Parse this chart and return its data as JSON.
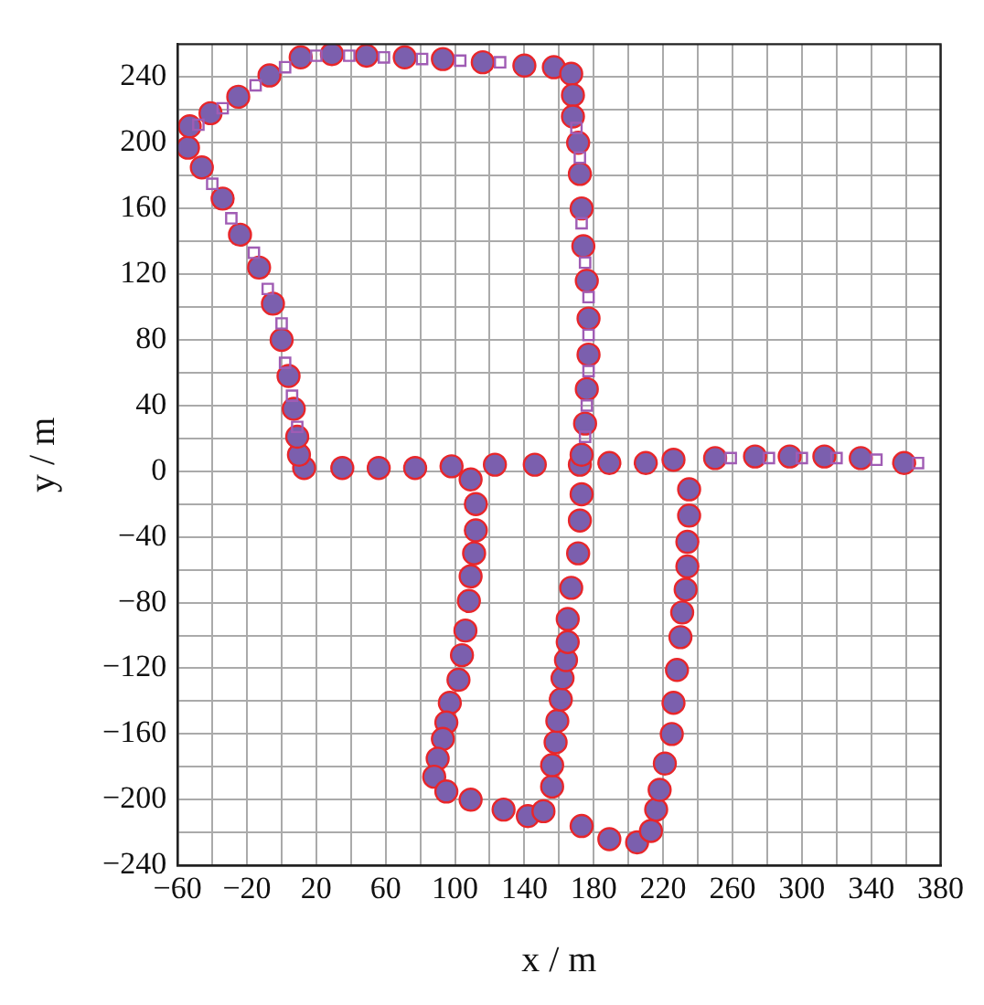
{
  "chart_data": {
    "type": "scatter",
    "xlabel": "x / m",
    "ylabel": "y / m",
    "xlim": [
      -60,
      380
    ],
    "ylim": [
      -240,
      260
    ],
    "xticks": [
      -60,
      {
        "value": -40,
        "label": null
      },
      -20,
      {
        "value": 0,
        "label": null
      },
      20,
      {
        "value": 40,
        "label": null
      },
      60,
      {
        "value": 80,
        "label": null
      },
      100,
      {
        "value": 120,
        "label": null
      },
      140,
      {
        "value": 160,
        "label": null
      },
      180,
      {
        "value": 200,
        "label": null
      },
      220,
      {
        "value": 240,
        "label": null
      },
      260,
      {
        "value": 280,
        "label": null
      },
      300,
      {
        "value": 320,
        "label": null
      },
      340,
      {
        "value": 360,
        "label": null
      },
      380
    ],
    "yticks": [
      -240,
      {
        "value": -220,
        "label": null
      },
      -200,
      {
        "value": -180,
        "label": null
      },
      -160,
      {
        "value": -140,
        "label": null
      },
      -120,
      {
        "value": -100,
        "label": null
      },
      -80,
      {
        "value": -60,
        "label": null
      },
      -40,
      {
        "value": -20,
        "label": null
      },
      0,
      {
        "value": 20,
        "label": null
      },
      40,
      {
        "value": 60,
        "label": null
      },
      80,
      {
        "value": 100,
        "label": null
      },
      120,
      {
        "value": 140,
        "label": null
      },
      160,
      {
        "value": 180,
        "label": null
      },
      200,
      {
        "value": 220,
        "label": null
      },
      240
    ],
    "grid": true,
    "legend": false,
    "series": [
      {
        "color": "#7b5fae",
        "marker": "circle",
        "x": [
          13,
          35,
          56,
          77,
          98,
          123,
          146,
          172,
          189,
          210,
          226,
          250,
          273,
          293,
          313,
          334,
          359,
          10,
          9,
          7,
          4,
          0,
          -5,
          -13,
          -24,
          -34,
          -46,
          -54,
          -53,
          -41,
          -25,
          -7,
          11,
          29,
          49,
          71,
          93,
          116,
          140,
          157,
          167,
          168,
          168,
          171,
          172,
          173,
          174,
          176,
          177,
          177,
          176,
          175,
          173,
          109,
          112,
          112,
          111,
          109,
          108,
          106,
          104,
          102,
          97,
          95,
          93,
          90,
          88,
          95,
          109,
          128,
          142,
          151,
          156,
          156,
          158,
          159,
          161,
          162,
          164,
          165,
          165,
          167,
          171,
          172,
          173,
          173,
          189,
          205,
          213,
          216,
          218,
          221,
          225,
          226,
          228,
          230,
          231,
          233,
          234,
          234,
          235,
          235
        ],
        "values": [
          2,
          2,
          2,
          2,
          3,
          4,
          4,
          4,
          5,
          5,
          7,
          8,
          9,
          9,
          9,
          8,
          5,
          10,
          21,
          38,
          58,
          80,
          102,
          124,
          144,
          166,
          185,
          197,
          210,
          218,
          228,
          241,
          252,
          254,
          253,
          252,
          251,
          249,
          247,
          246,
          242,
          229,
          216,
          200,
          181,
          160,
          137,
          116,
          93,
          71,
          50,
          29,
          10,
          -5,
          -20,
          -36,
          -50,
          -64,
          -79,
          -97,
          -112,
          -127,
          -141,
          -153,
          -163,
          -175,
          -186,
          -195,
          -200,
          -206,
          -210,
          -207,
          -192,
          -179,
          -165,
          -152,
          -139,
          -126,
          -115,
          -104,
          -90,
          -71,
          -50,
          -30,
          -14,
          -216,
          -224,
          -226,
          -219,
          -206,
          -194,
          -178,
          -160,
          -141,
          -121,
          -101,
          -86,
          -72,
          -58,
          -43,
          -27,
          -11
        ]
      },
      {
        "color": "#a05cb4",
        "marker": "square",
        "x": [
          20,
          39,
          59,
          81,
          103,
          126,
          2,
          -15,
          -34,
          -48,
          -40,
          -29,
          -16,
          -8,
          0,
          2,
          6,
          9,
          170,
          172,
          173,
          175,
          177,
          177,
          177,
          176,
          175,
          259,
          281,
          300,
          320,
          343,
          367
        ],
        "values": [
          253,
          253,
          252,
          251,
          250,
          249,
          246,
          235,
          221,
          211,
          175,
          154,
          133,
          111,
          90,
          66,
          46,
          27,
          209,
          191,
          151,
          127,
          106,
          83,
          61,
          40,
          21,
          8,
          8,
          8,
          8,
          7,
          5
        ]
      }
    ]
  }
}
